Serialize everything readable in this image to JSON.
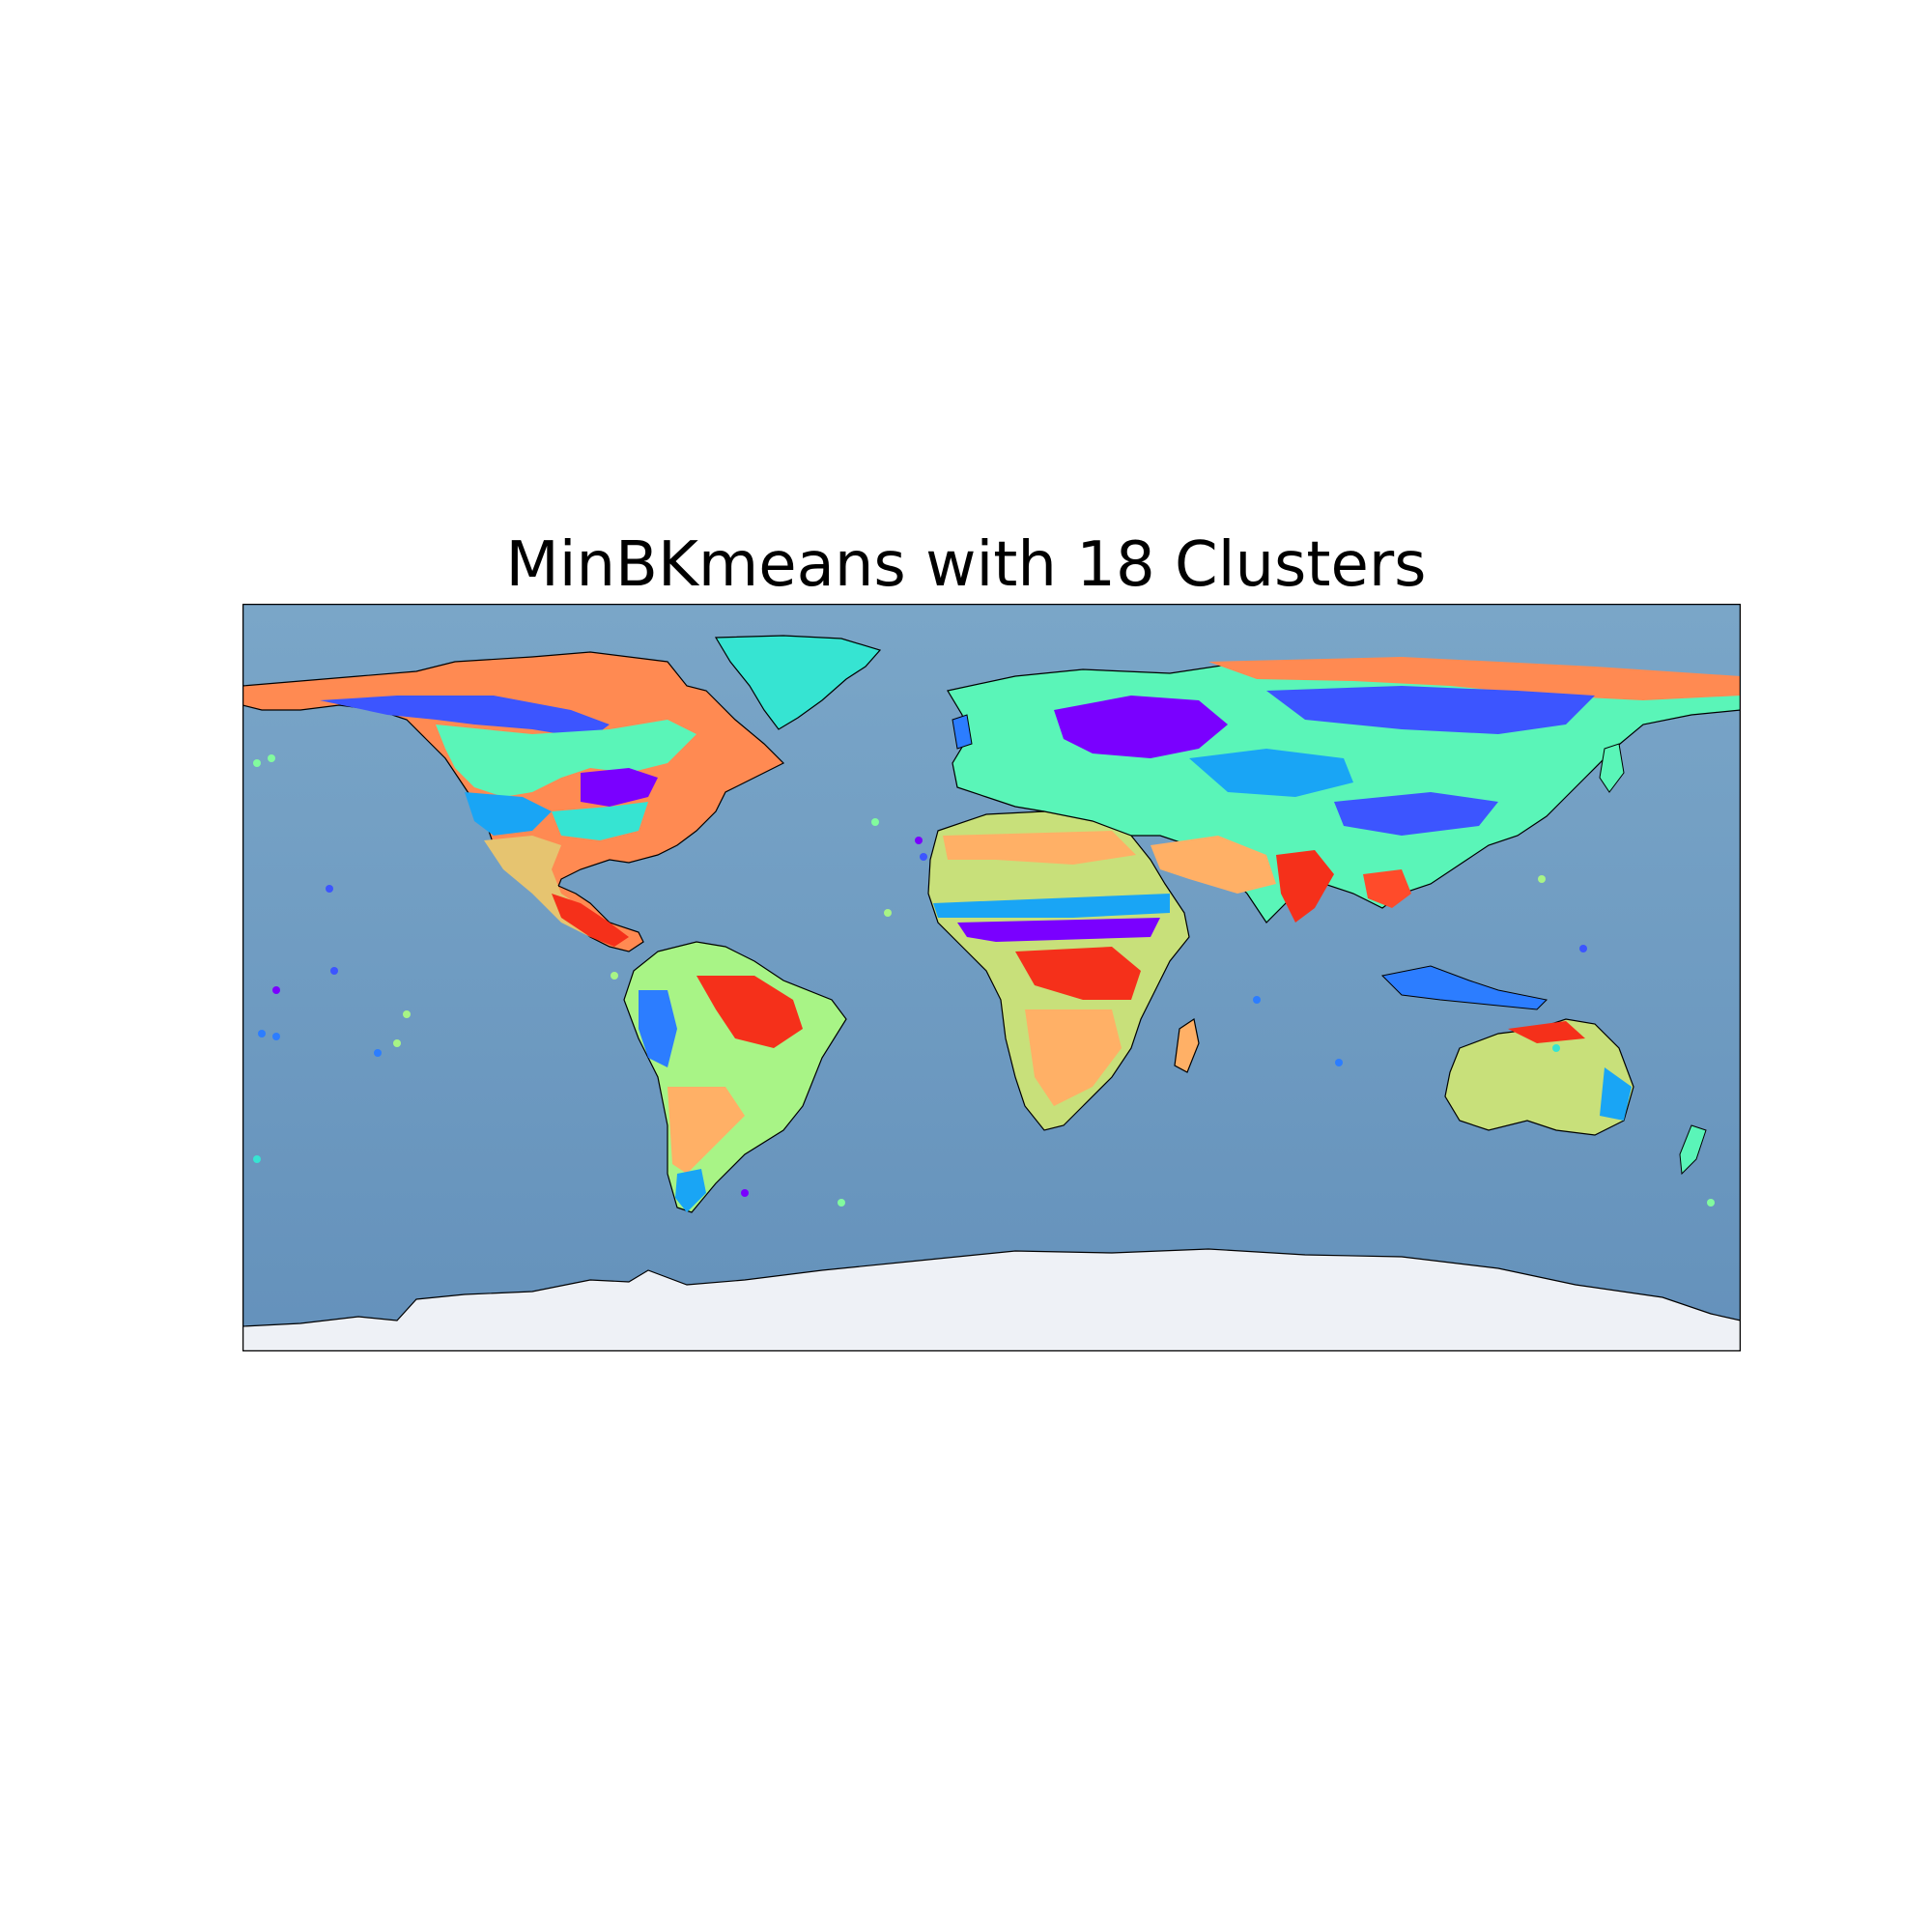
{
  "figure": {
    "title": "MinBKmeans with 18 Clusters"
  },
  "map": {
    "projection": "plate-carree",
    "lon_range": [
      -180,
      180
    ],
    "lat_range": [
      -90,
      90
    ],
    "background": "shaded-relief ocean",
    "ocean_color": "#6a9bc3",
    "ice_color": "#eef1f6",
    "features": [
      "coastlines",
      "country-borders-dotted",
      "rivers"
    ],
    "cluster_count": 18,
    "cluster_palette": [
      "#7a00ff",
      "#5a30ff",
      "#3c55ff",
      "#2c7dff",
      "#19a5f5",
      "#26c9e3",
      "#36e4d2",
      "#5af5b8",
      "#82fb9e",
      "#a8f486",
      "#c8e07a",
      "#e6c470",
      "#ffb066",
      "#ff8a52",
      "#ff6a3c",
      "#ff4b2a",
      "#f5301a",
      "#e81d10"
    ],
    "legend": "none"
  }
}
